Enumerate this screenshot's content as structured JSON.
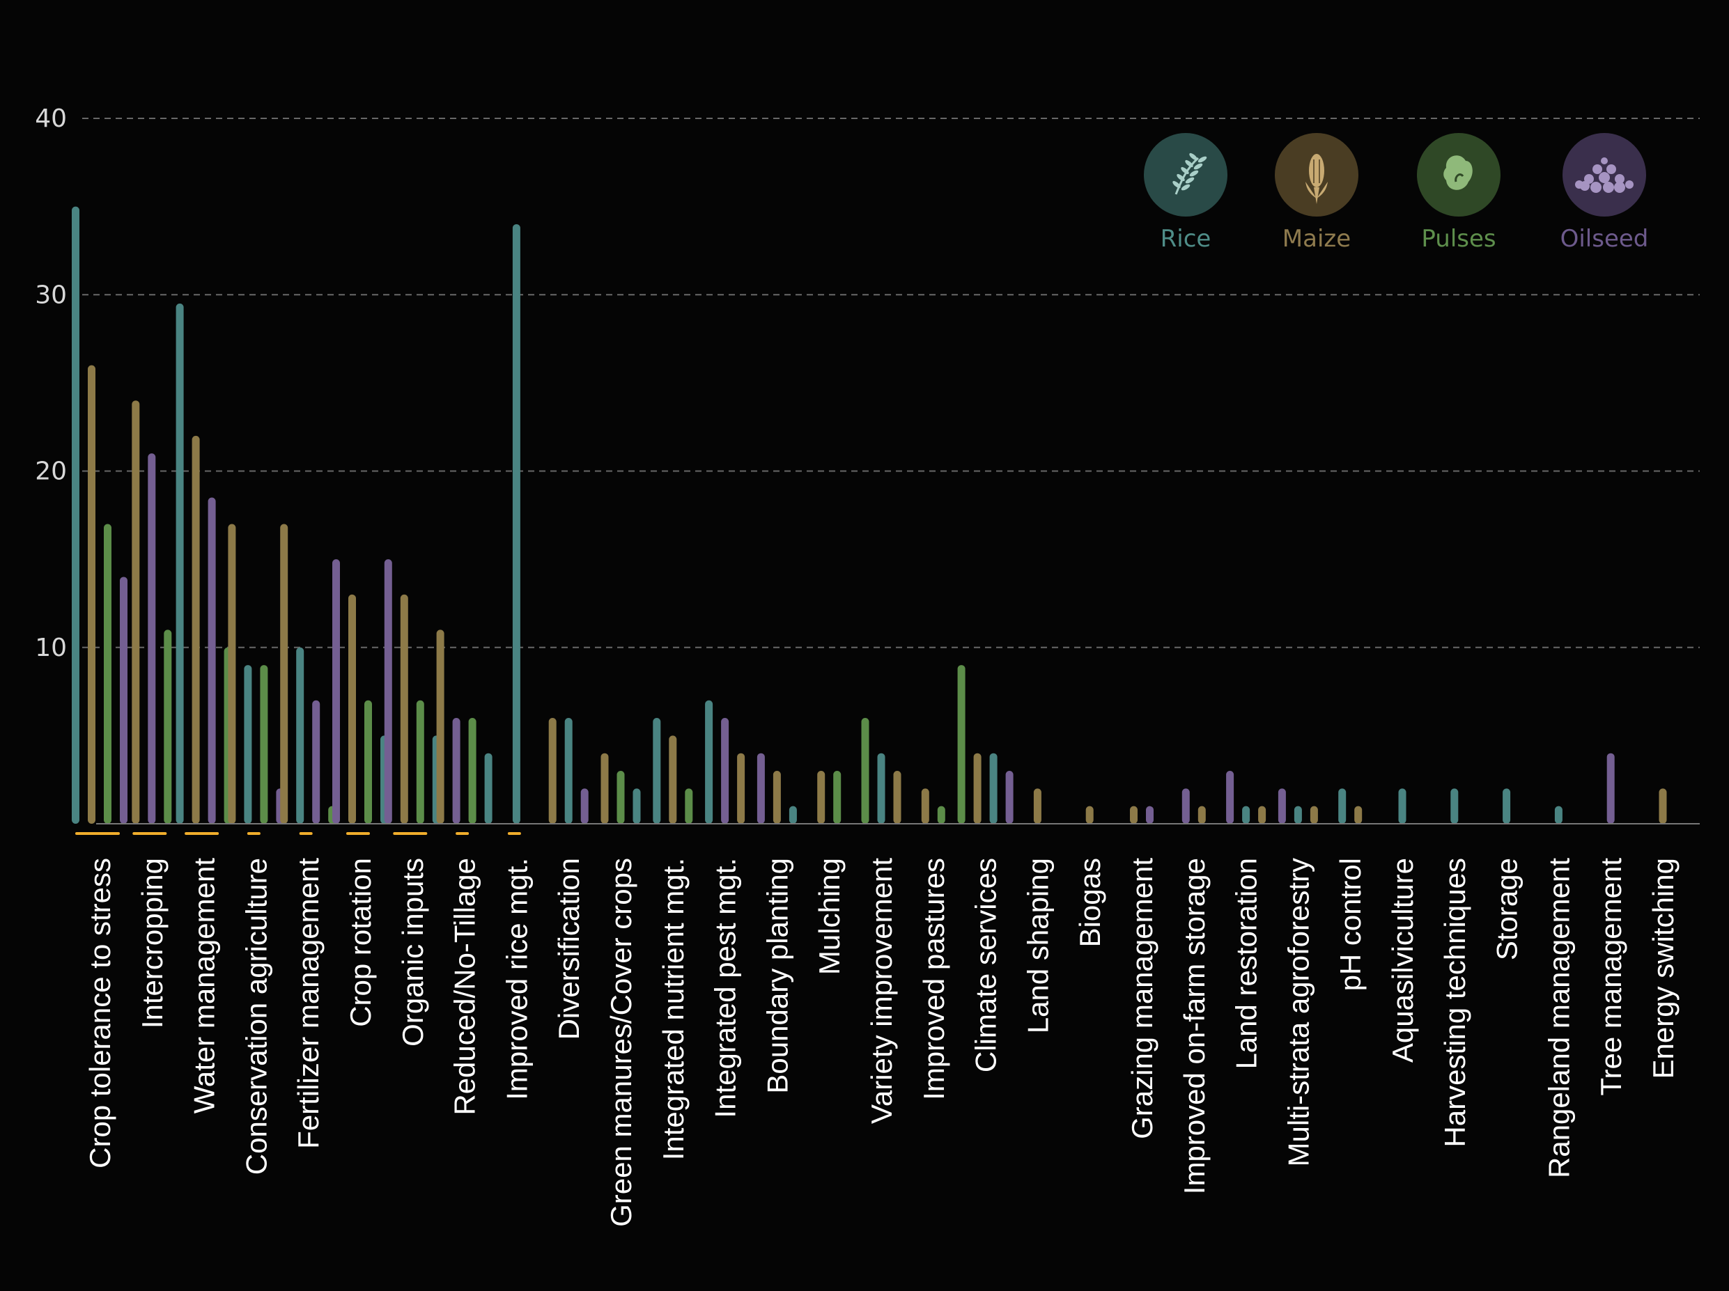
{
  "colors": {
    "background": "#050505",
    "rice": "#4a8482",
    "maize": "#8d7a48",
    "pulses": "#5c8d49",
    "oilseed": "#745f92",
    "marker": "#f0ad2c",
    "grid": "#8a8a8a",
    "axis": "#777777"
  },
  "legend": [
    {
      "name": "Rice",
      "icon": "rice-icon",
      "color": "#4a8482",
      "text_color": "#4f8d88",
      "circle": "#294a47"
    },
    {
      "name": "Maize",
      "icon": "maize-icon",
      "color": "#8d7a48",
      "text_color": "#8f7b4e",
      "circle": "#4a3d23"
    },
    {
      "name": "Pulses",
      "icon": "pulses-icon",
      "color": "#5c8d49",
      "text_color": "#5e8f4c",
      "circle": "#2f4826"
    },
    {
      "name": "Oilseed",
      "icon": "oilseed-icon",
      "color": "#745f92",
      "text_color": "#6d5a8c",
      "circle": "#3a2f4c"
    }
  ],
  "chart_data": {
    "type": "bar",
    "ylim": [
      0,
      40
    ],
    "yticks": [
      10,
      20,
      30,
      40
    ],
    "grid": true,
    "legend_position": "top-right",
    "categories": [
      "Crop tolerance to stress",
      "Intercropping",
      "Water management",
      "Conservation agriculture",
      "Fertilizer management",
      "Crop rotation",
      "Organic inputs",
      "Reduced/No-Tillage",
      "Improved rice mgt.",
      "Diversification",
      "Green manures/Cover crops",
      "Integrated nutrient mgt.",
      "Integrated pest mgt.",
      "Boundary planting",
      "Mulching",
      "Variety improvement",
      "Improved pastures",
      "Climate services",
      "Land shaping",
      "Biogas",
      "Grazing management",
      "Improved on-farm storage",
      "Land restoration",
      "Multi-strata agroforestry",
      "pH control",
      "Aquasilviculture",
      "Harvesting techniques",
      "Storage",
      "Rangeland management",
      "Tree management",
      "Energy switching"
    ],
    "bars": [
      [
        {
          "s": "Rice",
          "v": 35
        },
        {
          "s": "Maize",
          "v": 26
        },
        {
          "s": "Pulses",
          "v": 17
        },
        {
          "s": "Oilseed",
          "v": 14
        }
      ],
      [
        {
          "s": "Maize",
          "v": 24
        },
        {
          "s": "Oilseed",
          "v": 21
        },
        {
          "s": "Pulses",
          "v": 11
        }
      ],
      [
        {
          "s": "Rice",
          "v": 29.5
        },
        {
          "s": "Maize",
          "v": 22
        },
        {
          "s": "Oilseed",
          "v": 18.5
        },
        {
          "s": "Pulses",
          "v": 10
        }
      ],
      [
        {
          "s": "Maize",
          "v": 17
        },
        {
          "s": "Rice",
          "v": 9
        },
        {
          "s": "Pulses",
          "v": 9
        },
        {
          "s": "Oilseed",
          "v": 2
        }
      ],
      [
        {
          "s": "Maize",
          "v": 17
        },
        {
          "s": "Rice",
          "v": 10
        },
        {
          "s": "Oilseed",
          "v": 7
        },
        {
          "s": "Pulses",
          "v": 1
        }
      ],
      [
        {
          "s": "Oilseed",
          "v": 15
        },
        {
          "s": "Maize",
          "v": 13
        },
        {
          "s": "Pulses",
          "v": 7
        },
        {
          "s": "Rice",
          "v": 5
        }
      ],
      [
        {
          "s": "Oilseed",
          "v": 15
        },
        {
          "s": "Maize",
          "v": 13
        },
        {
          "s": "Pulses",
          "v": 7
        },
        {
          "s": "Rice",
          "v": 5
        }
      ],
      [
        {
          "s": "Maize",
          "v": 11
        },
        {
          "s": "Oilseed",
          "v": 6
        },
        {
          "s": "Pulses",
          "v": 6
        },
        {
          "s": "Rice",
          "v": 4
        }
      ],
      [
        {
          "s": "Rice",
          "v": 34
        }
      ],
      [
        {
          "s": "Maize",
          "v": 6
        },
        {
          "s": "Rice",
          "v": 6
        },
        {
          "s": "Oilseed",
          "v": 2
        }
      ],
      [
        {
          "s": "Maize",
          "v": 4
        },
        {
          "s": "Pulses",
          "v": 3
        },
        {
          "s": "Rice",
          "v": 2
        }
      ],
      [
        {
          "s": "Rice",
          "v": 6
        },
        {
          "s": "Maize",
          "v": 5
        },
        {
          "s": "Pulses",
          "v": 2
        }
      ],
      [
        {
          "s": "Rice",
          "v": 7
        },
        {
          "s": "Oilseed",
          "v": 6
        },
        {
          "s": "Maize",
          "v": 4
        }
      ],
      [
        {
          "s": "Oilseed",
          "v": 4
        },
        {
          "s": "Maize",
          "v": 3
        },
        {
          "s": "Rice",
          "v": 1
        }
      ],
      [
        {
          "s": "Maize",
          "v": 3
        },
        {
          "s": "Pulses",
          "v": 3
        }
      ],
      [
        {
          "s": "Pulses",
          "v": 6
        },
        {
          "s": "Rice",
          "v": 4
        },
        {
          "s": "Maize",
          "v": 3
        }
      ],
      [
        {
          "s": "Maize",
          "v": 2
        },
        {
          "s": "Pulses",
          "v": 1
        }
      ],
      [
        {
          "s": "Pulses",
          "v": 9
        },
        {
          "s": "Maize",
          "v": 4
        },
        {
          "s": "Rice",
          "v": 4
        },
        {
          "s": "Oilseed",
          "v": 3
        }
      ],
      [
        {
          "s": "Maize",
          "v": 2
        }
      ],
      [
        {
          "s": "Maize",
          "v": 1
        }
      ],
      [
        {
          "s": "Maize",
          "v": 1
        },
        {
          "s": "Oilseed",
          "v": 1
        }
      ],
      [
        {
          "s": "Oilseed",
          "v": 2
        },
        {
          "s": "Maize",
          "v": 1
        }
      ],
      [
        {
          "s": "Oilseed",
          "v": 3
        },
        {
          "s": "Rice",
          "v": 1
        },
        {
          "s": "Maize",
          "v": 1
        }
      ],
      [
        {
          "s": "Oilseed",
          "v": 2
        },
        {
          "s": "Rice",
          "v": 1
        },
        {
          "s": "Maize",
          "v": 1
        }
      ],
      [
        {
          "s": "Rice",
          "v": 2
        },
        {
          "s": "Maize",
          "v": 1
        }
      ],
      [
        {
          "s": "Rice",
          "v": 2
        }
      ],
      [
        {
          "s": "Rice",
          "v": 2
        }
      ],
      [
        {
          "s": "Rice",
          "v": 2
        }
      ],
      [
        {
          "s": "Rice",
          "v": 1
        }
      ],
      [
        {
          "s": "Oilseed",
          "v": 4
        }
      ],
      [
        {
          "s": "Maize",
          "v": 2
        }
      ]
    ],
    "markers": [
      {
        "category": 0,
        "relative_length": 1.0
      },
      {
        "category": 1,
        "relative_length": 0.75
      },
      {
        "category": 2,
        "relative_length": 0.75
      },
      {
        "category": 3,
        "relative_length": 0.25
      },
      {
        "category": 4,
        "relative_length": 0.25
      },
      {
        "category": 5,
        "relative_length": 0.5
      },
      {
        "category": 6,
        "relative_length": 0.75
      },
      {
        "category": 7,
        "relative_length": 0.25
      },
      {
        "category": 8,
        "relative_length": 0.25
      }
    ]
  }
}
